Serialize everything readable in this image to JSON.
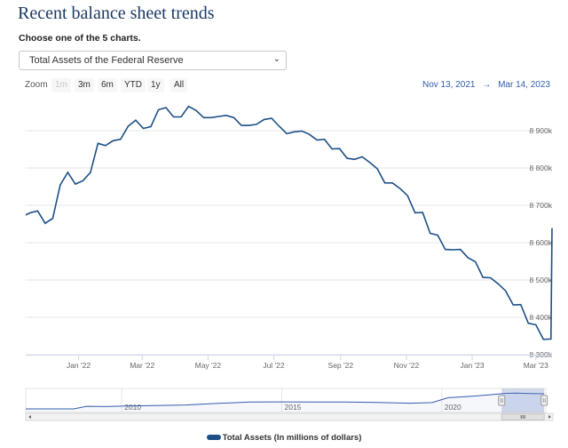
{
  "page": {
    "title": "Recent balance sheet trends",
    "subtitle": "Choose one of the 5 charts."
  },
  "select": {
    "value": "Total Assets of the Federal Reserve"
  },
  "zoom": {
    "label": "Zoom",
    "buttons": [
      {
        "label": "1m",
        "enabled": false
      },
      {
        "label": "3m",
        "enabled": true
      },
      {
        "label": "6m",
        "enabled": true
      },
      {
        "label": "YTD",
        "enabled": true
      },
      {
        "label": "1y",
        "enabled": true
      },
      {
        "label": "All",
        "enabled": true
      }
    ]
  },
  "range": {
    "from": "Nov 13, 2021",
    "arrow": "→",
    "to": "Mar 14, 2023"
  },
  "chart_data": {
    "type": "line",
    "title": "",
    "xlabel": "",
    "ylabel": "",
    "legend_position": "bottom",
    "grid": true,
    "line_color": "#1d4f86",
    "x_tick_labels": [
      "Jan '22",
      "Mar '22",
      "May '22",
      "Jul '22",
      "Sep '22",
      "Nov '22",
      "Jan '23",
      "Mar '23"
    ],
    "y_tick_labels": [
      "8 300k",
      "8 400k",
      "8 500k",
      "8 600k",
      "8 700k",
      "8 800k",
      "8 900k"
    ],
    "ylim": [
      8300000,
      9000000
    ],
    "series": [
      {
        "name": "Total Assets (In millions of dollars)",
        "x": [
          "2021-11-10",
          "2021-11-17",
          "2021-11-24",
          "2021-12-01",
          "2021-12-08",
          "2021-12-15",
          "2021-12-22",
          "2021-12-29",
          "2022-01-05",
          "2022-01-12",
          "2022-01-19",
          "2022-01-26",
          "2022-02-02",
          "2022-02-09",
          "2022-02-16",
          "2022-02-23",
          "2022-03-02",
          "2022-03-09",
          "2022-03-16",
          "2022-03-23",
          "2022-03-30",
          "2022-04-06",
          "2022-04-13",
          "2022-04-20",
          "2022-04-27",
          "2022-05-04",
          "2022-05-11",
          "2022-05-18",
          "2022-05-25",
          "2022-06-01",
          "2022-06-08",
          "2022-06-15",
          "2022-06-22",
          "2022-06-29",
          "2022-07-06",
          "2022-07-13",
          "2022-07-20",
          "2022-07-27",
          "2022-08-03",
          "2022-08-10",
          "2022-08-17",
          "2022-08-24",
          "2022-08-31",
          "2022-09-07",
          "2022-09-14",
          "2022-09-21",
          "2022-09-28",
          "2022-10-05",
          "2022-10-12",
          "2022-10-19",
          "2022-10-26",
          "2022-11-02",
          "2022-11-09",
          "2022-11-16",
          "2022-11-23",
          "2022-11-30",
          "2022-12-07",
          "2022-12-14",
          "2022-12-21",
          "2022-12-28",
          "2023-01-04",
          "2023-01-11",
          "2023-01-18",
          "2023-01-25",
          "2023-02-01",
          "2023-02-08",
          "2023-02-15",
          "2023-02-22",
          "2023-03-01",
          "2023-03-08",
          "2023-03-15"
        ],
        "values": [
          8670000,
          8680000,
          8685000,
          8652000,
          8665000,
          8755000,
          8788000,
          8757000,
          8766000,
          8788000,
          8866000,
          8860000,
          8873000,
          8877000,
          8912000,
          8928000,
          8906000,
          8911000,
          8956000,
          8962000,
          8937000,
          8937000,
          8965000,
          8954000,
          8935000,
          8935000,
          8938000,
          8941000,
          8935000,
          8914000,
          8914000,
          8917000,
          8930000,
          8933000,
          8912000,
          8892000,
          8897000,
          8899000,
          8890000,
          8875000,
          8877000,
          8851000,
          8852000,
          8826000,
          8823000,
          8830000,
          8815000,
          8798000,
          8760000,
          8760000,
          8745000,
          8726000,
          8680000,
          8681000,
          8625000,
          8620000,
          8582000,
          8581000,
          8582000,
          8560000,
          8549000,
          8507000,
          8506000,
          8490000,
          8471000,
          8433000,
          8434000,
          8384000,
          8380000,
          8341000,
          8342000
        ]
      }
    ],
    "last_point": {
      "x": "2023-03-16",
      "value": 8639000
    },
    "navigator": {
      "x_tick_labels": [
        "2010",
        "2015",
        "2020"
      ],
      "series": [
        {
          "year": 2007.0,
          "value": 900000
        },
        {
          "year": 2008.5,
          "value": 900000
        },
        {
          "year": 2008.9,
          "value": 2200000
        },
        {
          "year": 2009.5,
          "value": 2100000
        },
        {
          "year": 2010.0,
          "value": 2300000
        },
        {
          "year": 2011.0,
          "value": 2600000
        },
        {
          "year": 2012.0,
          "value": 2900000
        },
        {
          "year": 2013.0,
          "value": 3700000
        },
        {
          "year": 2014.0,
          "value": 4400000
        },
        {
          "year": 2015.0,
          "value": 4500000
        },
        {
          "year": 2016.0,
          "value": 4450000
        },
        {
          "year": 2017.0,
          "value": 4450000
        },
        {
          "year": 2018.0,
          "value": 4200000
        },
        {
          "year": 2019.0,
          "value": 3800000
        },
        {
          "year": 2019.7,
          "value": 4100000
        },
        {
          "year": 2020.2,
          "value": 6600000
        },
        {
          "year": 2020.6,
          "value": 7000000
        },
        {
          "year": 2021.0,
          "value": 7400000
        },
        {
          "year": 2021.5,
          "value": 8100000
        },
        {
          "year": 2022.0,
          "value": 8800000
        },
        {
          "year": 2022.3,
          "value": 8950000
        },
        {
          "year": 2022.8,
          "value": 8700000
        },
        {
          "year": 2023.2,
          "value": 8600000
        }
      ]
    }
  }
}
